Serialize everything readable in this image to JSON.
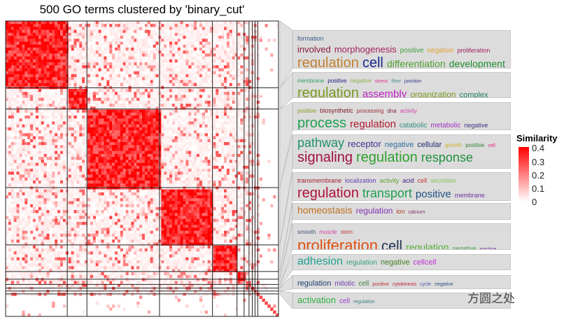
{
  "chart_data": {
    "type": "heatmap",
    "title": "500 GO terms clustered by 'binary_cut'",
    "n_terms": 500,
    "cluster_sizes": [
      113,
      36,
      133,
      97,
      45,
      13,
      9,
      6,
      5,
      5,
      38
    ],
    "color_scale": {
      "title": "Similarity",
      "min": 0,
      "max": 0.4,
      "low_color": "#ffffff",
      "high_color": "#ff0000",
      "ticks": [
        "0.4",
        "0.3",
        "0.2",
        "0.1",
        "0"
      ]
    },
    "grid": false
  },
  "wordclouds": [
    {
      "lines": [
        [
          [
            "formation",
            "#3a5a8a",
            9
          ]
        ],
        [
          [
            "involved",
            "#8b1a3a",
            13
          ],
          [
            "morphogenesis",
            "#a0205a",
            13
          ],
          [
            "positive",
            "#40a040",
            10
          ],
          [
            "negative",
            "#e0a030",
            10
          ],
          [
            "proliferation",
            "#a02060",
            9
          ]
        ],
        [
          [
            "regulation",
            "#c08030",
            20
          ],
          [
            "cell",
            "#1a2a8a",
            20
          ],
          [
            "differentiation",
            "#50a030",
            14
          ],
          [
            "development",
            "#209030",
            14
          ]
        ]
      ]
    },
    {
      "lines": [
        [
          [
            "membrane",
            "#30a060",
            8
          ],
          [
            "positive",
            "#202080",
            8
          ],
          [
            "negative",
            "#90b050",
            8
          ],
          [
            "stress",
            "#e03090",
            7
          ],
          [
            "fiber",
            "#509090",
            7
          ],
          [
            "junction",
            "#303090",
            7
          ]
        ],
        [
          [
            "regulation",
            "#7a9a20",
            20
          ],
          [
            "assembly",
            "#c020c0",
            15
          ],
          [
            "organization",
            "#7a9a20",
            12
          ],
          [
            "complex",
            "#208060",
            11
          ]
        ]
      ]
    },
    {
      "lines": [
        [
          [
            "positive",
            "#8a9a20",
            8
          ],
          [
            "biosynthetic",
            "#802020",
            9
          ],
          [
            "processing",
            "#a03030",
            8
          ],
          [
            "dna",
            "#802040",
            8
          ],
          [
            "activity",
            "#d040a0",
            8
          ]
        ],
        [
          [
            "process",
            "#20a050",
            20
          ],
          [
            "regulation",
            "#b01a30",
            15
          ],
          [
            "catabolic",
            "#309080",
            10
          ],
          [
            "metabolic",
            "#a030c0",
            10
          ],
          [
            "negative",
            "#403080",
            9
          ]
        ]
      ]
    },
    {
      "lines": [
        [
          [
            "pathway",
            "#209070",
            18
          ],
          [
            "receptor",
            "#403090",
            13
          ],
          [
            "negative",
            "#3070a0",
            11
          ],
          [
            "cellular",
            "#202870",
            11
          ],
          [
            "growth",
            "#d0b030",
            8
          ],
          [
            "positive",
            "#308030",
            8
          ],
          [
            "cell",
            "#e02080",
            7
          ]
        ],
        [
          [
            "signaling",
            "#a01040",
            20
          ],
          [
            "regulation",
            "#30a030",
            20
          ],
          [
            "response",
            "#209040",
            18
          ]
        ]
      ]
    },
    {
      "lines": [
        [
          [
            "transmembrane",
            "#a02030",
            9
          ],
          [
            "localization",
            "#6040b0",
            9
          ],
          [
            "activity",
            "#60a030",
            9
          ],
          [
            "acid",
            "#402080",
            9
          ],
          [
            "cell",
            "#c03030",
            9
          ],
          [
            "secretion",
            "#90c060",
            9
          ]
        ],
        [
          [
            "regulation",
            "#b01038",
            20
          ],
          [
            "transport",
            "#20a050",
            18
          ],
          [
            "positive",
            "#205080",
            15
          ],
          [
            "membrane",
            "#7030a0",
            9
          ]
        ]
      ]
    },
    {
      "lines": [
        [
          [
            "homeostasis",
            "#c07020",
            14
          ],
          [
            "regulation",
            "#8030b0",
            12
          ],
          [
            "ion",
            "#b04020",
            9
          ],
          [
            "calcium",
            "#803070",
            7
          ]
        ]
      ]
    },
    {
      "lines": [
        [
          [
            "smooth",
            "#405070",
            8
          ],
          [
            "muscle",
            "#d040a0",
            8
          ],
          [
            "stem",
            "#c04040",
            8
          ]
        ],
        [
          [
            "proliferation",
            "#e05010",
            22
          ],
          [
            "cell",
            "#203050",
            20
          ],
          [
            "regulation",
            "#50b030",
            14
          ],
          [
            "negative",
            "#40a040",
            9
          ],
          [
            "positive",
            "#7030a0",
            7
          ]
        ]
      ]
    },
    {
      "lines": [
        [
          [
            "adhesion",
            "#20a090",
            16
          ],
          [
            "regulation",
            "#30a080",
            10
          ],
          [
            "negative",
            "#408020",
            11
          ],
          [
            "cellcell",
            "#c030d0",
            11
          ]
        ]
      ]
    },
    {
      "lines": [
        [
          [
            "regulation",
            "#204070",
            11
          ],
          [
            "mitotic",
            "#7040b0",
            10
          ],
          [
            "cell",
            "#408040",
            10
          ],
          [
            "positive",
            "#c03030",
            7
          ],
          [
            "cytokinesis",
            "#c02040",
            7
          ],
          [
            "cycle",
            "#5050b0",
            7
          ],
          [
            "negative",
            "#305080",
            7
          ]
        ]
      ]
    },
    {
      "lines": [
        [
          [
            "activation",
            "#30b040",
            13
          ],
          [
            "cell",
            "#a040d0",
            10
          ],
          [
            "regulation",
            "#408080",
            7
          ]
        ]
      ]
    }
  ],
  "watermark": "方圆之处"
}
